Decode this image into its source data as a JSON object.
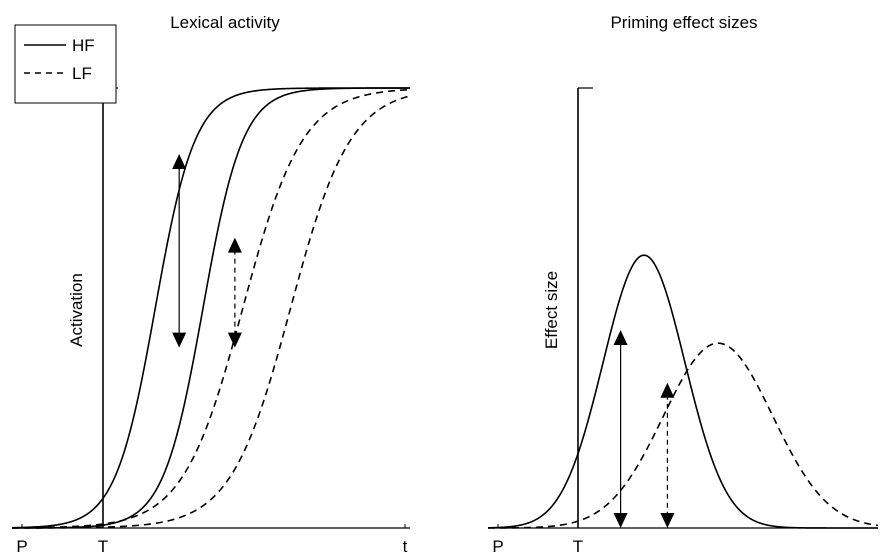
{
  "chart_data": [
    {
      "type": "line",
      "title": "Lexical activity",
      "xlabel": "",
      "ylabel": "Activation",
      "x_ticks": [
        "P",
        "T",
        "t"
      ],
      "xlim": [
        0,
        1
      ],
      "ylim": [
        0,
        1
      ],
      "grid": false,
      "legend": {
        "placement": "top-left",
        "entries": [
          "HF",
          "LF"
        ]
      },
      "series": [
        {
          "name": "HF",
          "style": "solid",
          "role": "prime-onset",
          "midpoint": 0.36,
          "steepness": 0.05
        },
        {
          "name": "HF",
          "style": "solid",
          "role": "target-onset",
          "midpoint": 0.48,
          "steepness": 0.05
        },
        {
          "name": "LF",
          "style": "dashed",
          "role": "prime-onset",
          "midpoint": 0.58,
          "steepness": 0.075
        },
        {
          "name": "LF",
          "style": "dashed",
          "role": "target-onset",
          "midpoint": 0.7,
          "steepness": 0.075
        }
      ],
      "arrows": [
        {
          "style": "solid",
          "x": 0.42,
          "y_low": 0.41,
          "y_high": 0.85
        },
        {
          "style": "dashed",
          "x": 0.56,
          "y_low": 0.41,
          "y_high": 0.66
        }
      ]
    },
    {
      "type": "line",
      "title": "Priming effect sizes",
      "xlabel": "",
      "ylabel": "Effect size",
      "x_ticks": [
        "P",
        "T"
      ],
      "xlim": [
        0,
        1
      ],
      "ylim": [
        0,
        1
      ],
      "grid": false,
      "series": [
        {
          "name": "HF",
          "style": "solid",
          "peak_x": 0.4,
          "peak_y": 0.62,
          "width": 0.105
        },
        {
          "name": "LF",
          "style": "dashed",
          "peak_x": 0.59,
          "peak_y": 0.42,
          "width": 0.14
        }
      ],
      "arrows": [
        {
          "style": "solid",
          "x": 0.34,
          "y_low": 0.0,
          "y_high": 0.45
        },
        {
          "style": "dashed",
          "x": 0.46,
          "y_low": 0.0,
          "y_high": 0.33
        }
      ]
    }
  ],
  "colors": {
    "ink": "#000000",
    "background": "#ffffff"
  }
}
